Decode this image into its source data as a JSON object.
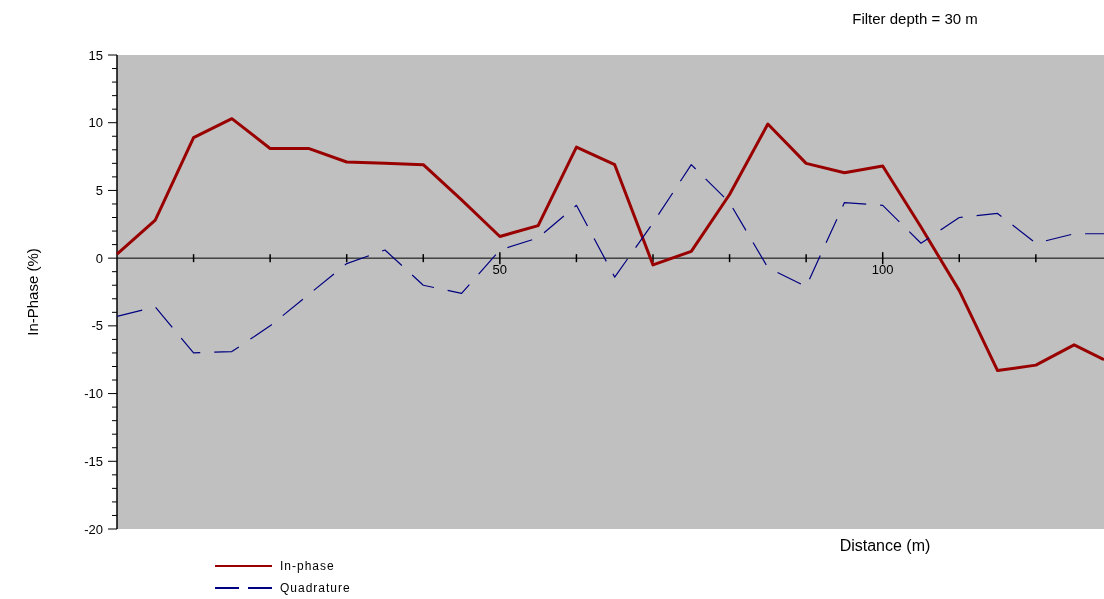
{
  "chart_data": {
    "type": "line",
    "title": "Filter depth =  30 m",
    "xlabel": "Distance (m)",
    "ylabel": "In-Phase (%)",
    "x": [
      0,
      5,
      10,
      15,
      20,
      25,
      30,
      35,
      40,
      45,
      50,
      55,
      60,
      65,
      70,
      75,
      80,
      85,
      90,
      95,
      100,
      105,
      110,
      115,
      120,
      125,
      128.9
    ],
    "series": [
      {
        "name": "In-phase",
        "color": "#990000",
        "line_style": "solid",
        "values": [
          0.3,
          2.8,
          8.9,
          10.3,
          8.1,
          8.1,
          7.1,
          7.0,
          6.9,
          4.3,
          1.6,
          2.4,
          8.2,
          6.9,
          -0.5,
          0.5,
          4.7,
          9.9,
          7.0,
          6.3,
          6.8,
          2.3,
          -2.4,
          -8.3,
          -7.9,
          -6.4,
          -7.5
        ]
      },
      {
        "name": "Quadrature",
        "color": "#000080",
        "line_style": "dashed",
        "values": [
          -4.3,
          -3.6,
          -7.0,
          -6.9,
          -5.0,
          -2.7,
          -0.4,
          0.6,
          -2.0,
          -2.6,
          0.6,
          1.5,
          3.9,
          -1.4,
          2.6,
          6.9,
          4.1,
          -0.7,
          -2.1,
          4.1,
          3.9,
          1.1,
          3.0,
          3.3,
          1.1,
          1.8,
          1.8
        ]
      }
    ],
    "xlim": [
      0,
      128.9
    ],
    "xticks": [
      {
        "value": 10,
        "label": null
      },
      {
        "value": 20,
        "label": null
      },
      {
        "value": 30,
        "label": null
      },
      {
        "value": 40,
        "label": null
      },
      50,
      {
        "value": 60,
        "label": null
      },
      {
        "value": 70,
        "label": null
      },
      {
        "value": 80,
        "label": null
      },
      {
        "value": 90,
        "label": null
      },
      100,
      {
        "value": 110,
        "label": null
      },
      {
        "value": 120,
        "label": null
      }
    ],
    "ylim": [
      -20,
      15
    ],
    "yticks": [
      -20,
      {
        "value": -19,
        "label": null
      },
      {
        "value": -18,
        "label": null
      },
      {
        "value": -17,
        "label": null
      },
      {
        "value": -16,
        "label": null
      },
      -15,
      {
        "value": -14,
        "label": null
      },
      {
        "value": -13,
        "label": null
      },
      {
        "value": -12,
        "label": null
      },
      {
        "value": -11,
        "label": null
      },
      -10,
      {
        "value": -9,
        "label": null
      },
      {
        "value": -8,
        "label": null
      },
      {
        "value": -7,
        "label": null
      },
      {
        "value": -6,
        "label": null
      },
      -5,
      {
        "value": -4,
        "label": null
      },
      {
        "value": -3,
        "label": null
      },
      {
        "value": -2,
        "label": null
      },
      {
        "value": -1,
        "label": null
      },
      0,
      {
        "value": 1,
        "label": null
      },
      {
        "value": 2,
        "label": null
      },
      {
        "value": 3,
        "label": null
      },
      {
        "value": 4,
        "label": null
      },
      5,
      {
        "value": 6,
        "label": null
      },
      {
        "value": 7,
        "label": null
      },
      {
        "value": 8,
        "label": null
      },
      {
        "value": 9,
        "label": null
      },
      10,
      {
        "value": 11,
        "label": null
      },
      {
        "value": 12,
        "label": null
      },
      {
        "value": 13,
        "label": null
      },
      {
        "value": 14,
        "label": null
      },
      15
    ],
    "grid": false,
    "legend": "bottom left",
    "marker": "none"
  }
}
